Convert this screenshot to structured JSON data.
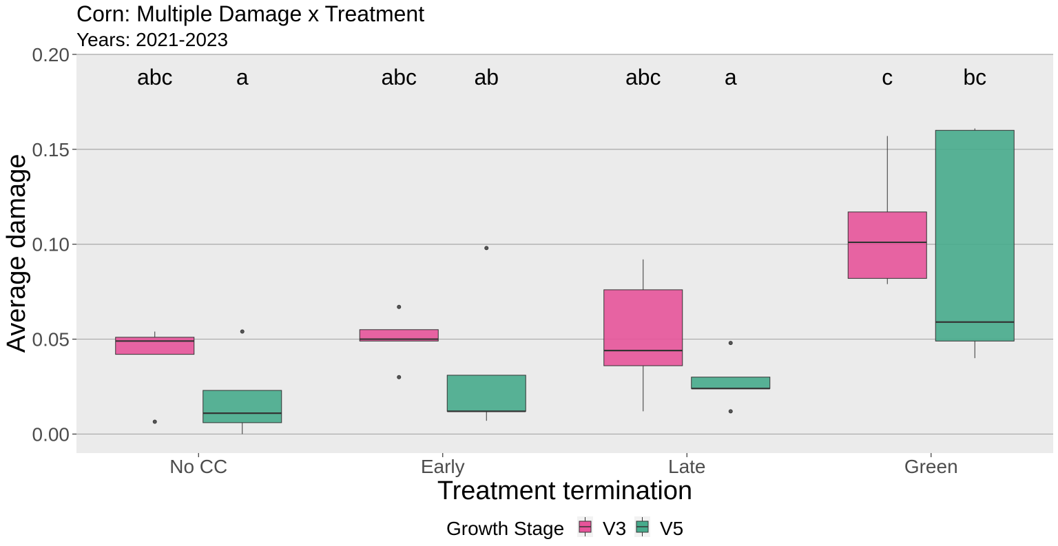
{
  "chart_data": {
    "type": "box",
    "title": "Corn: Multiple Damage x Treatment",
    "subtitle": "Years: 2021-2023",
    "xlabel": "Treatment termination",
    "ylabel": "Average damage",
    "ylim": [
      -0.01,
      0.2
    ],
    "yticks": [
      0.0,
      0.05,
      0.1,
      0.15,
      0.2
    ],
    "ytick_labels": [
      "0.00",
      "0.05",
      "0.10",
      "0.15",
      "0.20"
    ],
    "grid": true,
    "categories": [
      "No CC",
      "Early",
      "Late",
      "Green"
    ],
    "legend": {
      "title": "Growth Stage",
      "position": "bottom",
      "entries": [
        "V3",
        "V5"
      ]
    },
    "colors": {
      "V3": "#e7549a",
      "V5": "#47ab8c",
      "panel": "#ebebeb",
      "grid": "#a8a8a8"
    },
    "letter_y": 0.188,
    "series": [
      {
        "name": "V3",
        "boxes": [
          {
            "category": "No CC",
            "min": 0.042,
            "q1": 0.042,
            "median": 0.049,
            "q3": 0.051,
            "max": 0.054,
            "outliers": [
              0.0065
            ],
            "letter": "abc"
          },
          {
            "category": "Early",
            "min": 0.049,
            "q1": 0.049,
            "median": 0.05,
            "q3": 0.055,
            "max": 0.055,
            "outliers": [
              0.067,
              0.03
            ],
            "letter": "abc"
          },
          {
            "category": "Late",
            "min": 0.012,
            "q1": 0.036,
            "median": 0.044,
            "q3": 0.076,
            "max": 0.092,
            "outliers": [],
            "letter": "abc"
          },
          {
            "category": "Green",
            "min": 0.079,
            "q1": 0.082,
            "median": 0.101,
            "q3": 0.117,
            "max": 0.157,
            "outliers": [],
            "letter": "c"
          }
        ]
      },
      {
        "name": "V5",
        "boxes": [
          {
            "category": "No CC",
            "min": 0.0,
            "q1": 0.006,
            "median": 0.011,
            "q3": 0.023,
            "max": 0.023,
            "outliers": [
              0.054
            ],
            "letter": "a"
          },
          {
            "category": "Early",
            "min": 0.007,
            "q1": 0.012,
            "median": 0.012,
            "q3": 0.031,
            "max": 0.031,
            "outliers": [
              0.098
            ],
            "letter": "ab"
          },
          {
            "category": "Late",
            "min": 0.024,
            "q1": 0.024,
            "median": 0.024,
            "q3": 0.03,
            "max": 0.03,
            "outliers": [
              0.048,
              0.012
            ],
            "letter": "a"
          },
          {
            "category": "Green",
            "min": 0.04,
            "q1": 0.049,
            "median": 0.059,
            "q3": 0.16,
            "max": 0.161,
            "outliers": [],
            "letter": "bc"
          }
        ]
      }
    ]
  }
}
